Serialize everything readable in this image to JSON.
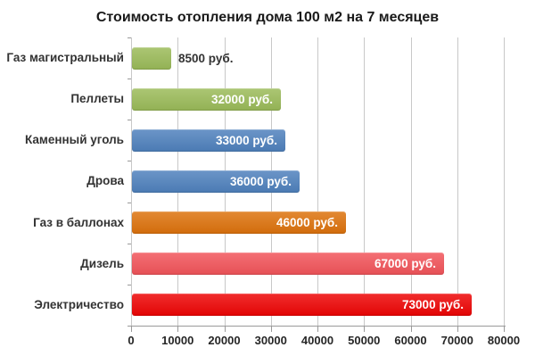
{
  "title": "Стоимость отопления дома 100 м2 на 7 месяцев",
  "chart_data": {
    "type": "bar",
    "orientation": "horizontal",
    "title": "Стоимость отопления дома 100 м2 на 7 месяцев",
    "xlabel": "",
    "ylabel": "",
    "categories": [
      "Газ магистральный",
      "Пеллеты",
      "Каменный уголь",
      "Дрова",
      "Газ в баллонах",
      "Дизель",
      "Электричество"
    ],
    "values": [
      8500,
      32000,
      33000,
      36000,
      46000,
      67000,
      73000
    ],
    "value_labels": [
      "8500 руб.",
      "32000 руб.",
      "33000 руб.",
      "36000 руб.",
      "46000 руб.",
      "67000 руб.",
      "73000 руб."
    ],
    "bar_colors": [
      "#9bbb59",
      "#9bbb59",
      "#4f81bd",
      "#4f81bd",
      "#dd720c",
      "#f2545a",
      "#ee0505"
    ],
    "value_label_position": [
      "outside-end",
      "inside-end",
      "inside-end",
      "inside-end",
      "inside-end",
      "inside-end",
      "inside-end"
    ],
    "xlim": [
      0,
      80000
    ],
    "x_ticks": [
      0,
      10000,
      20000,
      30000,
      40000,
      50000,
      60000,
      70000,
      80000
    ],
    "x_tick_labels": [
      "0",
      "10000",
      "20000",
      "30000",
      "40000",
      "50000",
      "60000",
      "70000",
      "80000"
    ],
    "grid": true,
    "legend": false
  },
  "colors": {
    "background": "#ffffff",
    "gridline": "#c8c8c8",
    "axis": "#9a9a9a",
    "title_text": "#1a1a1a",
    "category_text": "#333333",
    "value_inside_text": "#ffffff",
    "value_outside_text": "#333333",
    "tick_text": "#262626"
  }
}
